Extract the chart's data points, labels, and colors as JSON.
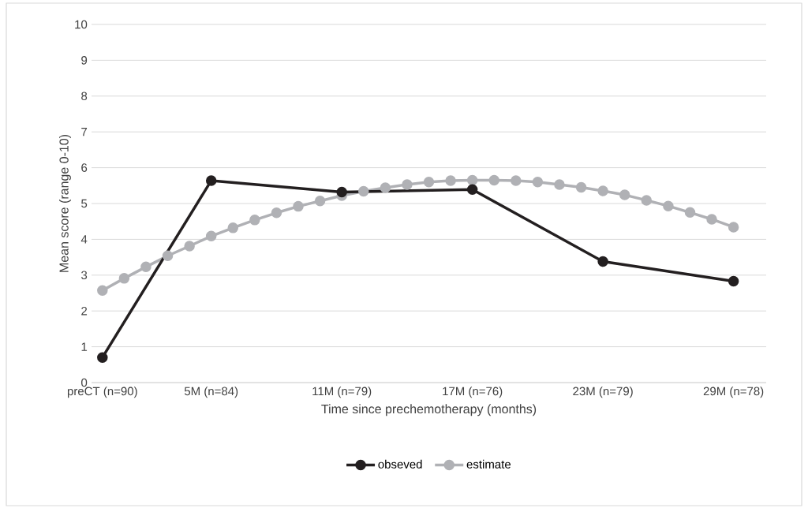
{
  "chart_data": {
    "type": "line",
    "xlabel": "Time since prechemotherapy (months)",
    "ylabel": "Mean score (range 0-10)",
    "categories": [
      "preCT (n=90)",
      null,
      null,
      null,
      null,
      "5M (n=84)",
      null,
      null,
      null,
      null,
      null,
      "11M (n=79)",
      null,
      null,
      null,
      null,
      null,
      "17M (n=76)",
      null,
      null,
      null,
      null,
      null,
      "23M (n=79)",
      null,
      null,
      null,
      null,
      null,
      "29M (n=78)",
      null
    ],
    "series": [
      {
        "name": "obseved",
        "color": "#231f20",
        "values": [
          0.7,
          null,
          null,
          null,
          null,
          5.64,
          null,
          null,
          null,
          null,
          null,
          5.32,
          null,
          null,
          null,
          null,
          null,
          5.39,
          null,
          null,
          null,
          null,
          null,
          3.38,
          null,
          null,
          null,
          null,
          null,
          2.83,
          null
        ]
      },
      {
        "name": "estimate",
        "color": "#b0b1b5",
        "values": [
          2.57,
          2.91,
          3.23,
          3.54,
          3.81,
          4.09,
          4.32,
          4.54,
          4.74,
          4.92,
          5.07,
          5.22,
          5.34,
          5.44,
          5.53,
          5.6,
          5.64,
          5.65,
          5.65,
          5.64,
          5.6,
          5.53,
          5.45,
          5.35,
          5.24,
          5.09,
          4.93,
          4.75,
          4.56,
          4.34,
          null
        ]
      }
    ],
    "ylim": [
      0,
      10
    ],
    "yticks": [
      0,
      1,
      2,
      3,
      4,
      5,
      6,
      7,
      8,
      9,
      10
    ],
    "grid": "y",
    "legend": "bottom",
    "marker": "circle"
  }
}
